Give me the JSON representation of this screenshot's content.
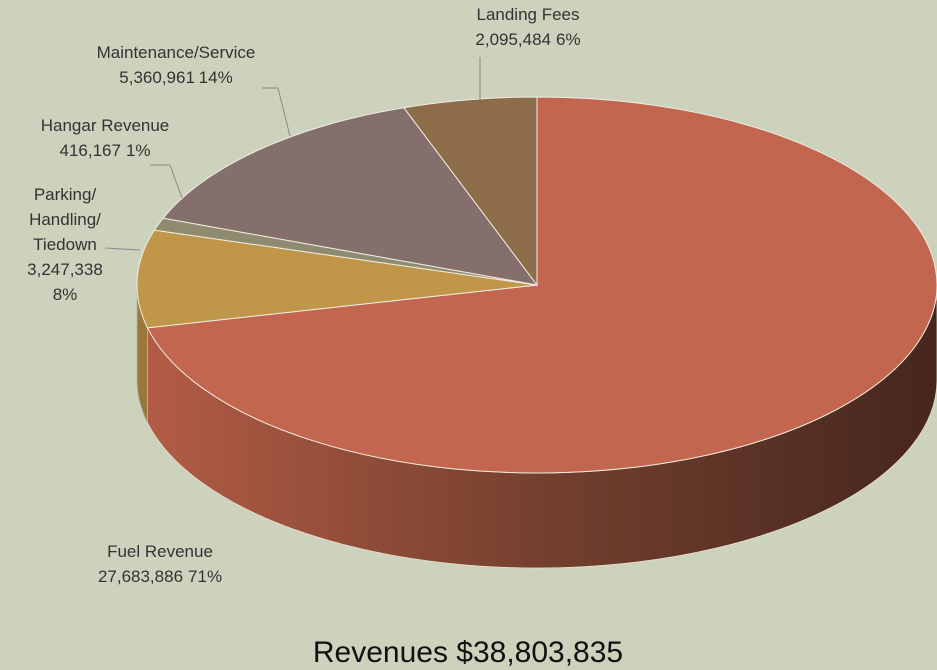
{
  "chart_data": {
    "type": "pie3d",
    "title": "Revenues $38,803,835",
    "categories": [
      "Fuel Revenue",
      "Parking/Handling/Tiedown",
      "Hangar Revenue",
      "Maintenance/Service",
      "Landing Fees"
    ],
    "values": [
      27683886,
      3247338,
      416167,
      5360961,
      2095484
    ],
    "value_labels": [
      "27,683,886",
      "3,247,338",
      "416,167",
      "5,360,961",
      "2,095,484"
    ],
    "percent_labels": [
      "71%",
      "8%",
      "1%",
      "14%",
      "6%"
    ],
    "colors": [
      "#c2664f",
      "#c0964b",
      "#8f8b70",
      "#846f6c",
      "#8d6c4a"
    ]
  }
}
